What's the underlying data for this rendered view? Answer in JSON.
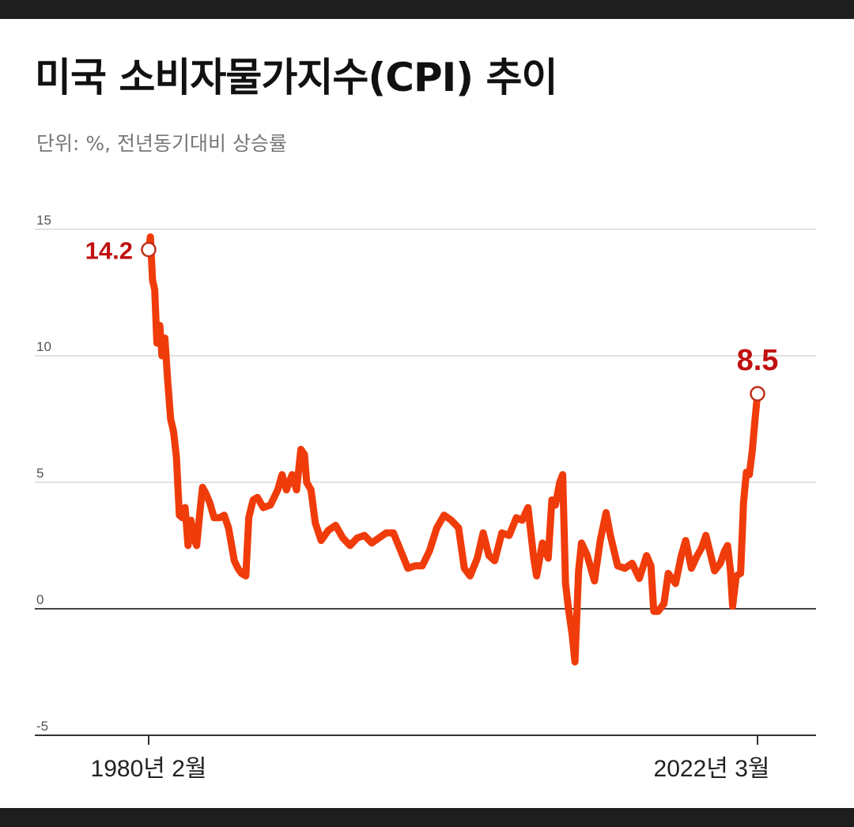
{
  "chart_data": {
    "type": "line",
    "title": "미국 소비자물가지수(CPI) 추이",
    "subtitle": "단위: %, 전년동기대비 상승률",
    "ylim": [
      -5,
      15
    ],
    "y_ticks": [
      "15",
      "10",
      "5",
      "0",
      "-5"
    ],
    "x_labels": {
      "start": "1980년 2월",
      "end": "2022년 3월"
    },
    "grid": true,
    "line_color": "#f03c0a",
    "callouts": [
      {
        "label": "14.2",
        "year": 1980.08,
        "value": 14.2
      },
      {
        "label": "8.5",
        "year": 2022.17,
        "value": 8.5
      }
    ],
    "series": [
      {
        "x": [
          1980.08,
          1980.2,
          1980.35,
          1980.5,
          1980.65,
          1980.85,
          1981.0,
          1981.2,
          1981.4,
          1981.6,
          1981.8,
          1982.0,
          1982.2,
          1982.4,
          1982.6,
          1982.8,
          1983.0,
          1983.2,
          1983.4,
          1983.6,
          1983.8,
          1984.0,
          1984.3,
          1984.6,
          1985.0,
          1985.3,
          1985.6,
          1986.0,
          1986.25,
          1986.5,
          1986.8,
          1987.0,
          1987.3,
          1987.6,
          1988.0,
          1988.5,
          1989.0,
          1989.3,
          1989.6,
          1990.0,
          1990.3,
          1990.6,
          1990.85,
          1991.0,
          1991.3,
          1991.6,
          1992.0,
          1992.5,
          1993.0,
          1993.5,
          1994.0,
          1994.5,
          1995.0,
          1995.5,
          1996.0,
          1996.5,
          1997.0,
          1997.5,
          1998.0,
          1998.5,
          1999.0,
          1999.5,
          2000.0,
          2000.5,
          2001.0,
          2001.5,
          2001.9,
          2002.3,
          2002.8,
          2003.2,
          2003.6,
          2004.0,
          2004.5,
          2005.0,
          2005.5,
          2005.9,
          2006.3,
          2006.7,
          2006.9,
          2007.3,
          2007.7,
          2007.95,
          2008.2,
          2008.5,
          2008.7,
          2008.9,
          2009.1,
          2009.35,
          2009.55,
          2009.8,
          2010.0,
          2010.4,
          2010.9,
          2011.3,
          2011.7,
          2012.0,
          2012.5,
          2013.0,
          2013.5,
          2014.0,
          2014.5,
          2014.8,
          2015.0,
          2015.3,
          2015.7,
          2016.0,
          2016.5,
          2016.9,
          2017.2,
          2017.6,
          2018.0,
          2018.3,
          2018.6,
          2018.9,
          2019.2,
          2019.6,
          2019.9,
          2020.1,
          2020.3,
          2020.45,
          2020.7,
          2021.0,
          2021.2,
          2021.4,
          2021.6,
          2021.8,
          2022.0,
          2022.17
        ],
        "values": [
          14.2,
          14.7,
          13.0,
          12.6,
          10.5,
          11.2,
          10.0,
          10.7,
          9.0,
          7.5,
          7.0,
          6.0,
          3.7,
          3.6,
          4.0,
          2.5,
          3.5,
          2.8,
          2.5,
          3.7,
          4.8,
          4.6,
          4.2,
          3.6,
          3.6,
          3.7,
          3.2,
          1.9,
          1.6,
          1.4,
          1.3,
          3.6,
          4.3,
          4.4,
          4.0,
          4.1,
          4.7,
          5.3,
          4.7,
          5.3,
          4.7,
          6.3,
          6.1,
          5.0,
          4.7,
          3.4,
          2.7,
          3.1,
          3.3,
          2.8,
          2.5,
          2.8,
          2.9,
          2.6,
          2.8,
          3.0,
          3.0,
          2.3,
          1.6,
          1.7,
          1.7,
          2.3,
          3.2,
          3.7,
          3.5,
          3.2,
          1.6,
          1.3,
          2.0,
          3.0,
          2.1,
          1.9,
          3.0,
          2.9,
          3.6,
          3.5,
          4.0,
          2.0,
          1.3,
          2.6,
          2.0,
          4.3,
          4.1,
          5.0,
          5.3,
          1.0,
          0.0,
          -1.0,
          -2.1,
          1.5,
          2.6,
          2.1,
          1.1,
          2.7,
          3.8,
          2.9,
          1.7,
          1.6,
          1.8,
          1.2,
          2.1,
          1.7,
          -0.1,
          -0.1,
          0.2,
          1.4,
          1.0,
          2.1,
          2.7,
          1.6,
          2.1,
          2.4,
          2.9,
          2.2,
          1.5,
          1.8,
          2.3,
          2.5,
          1.5,
          0.1,
          1.3,
          1.4,
          4.2,
          5.4,
          5.3,
          6.2,
          7.5,
          8.5
        ]
      }
    ]
  }
}
